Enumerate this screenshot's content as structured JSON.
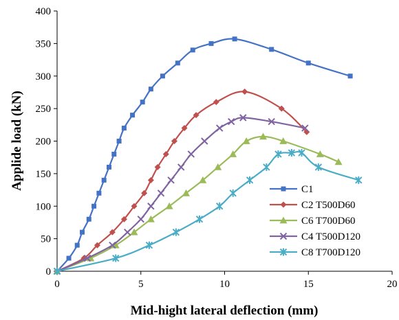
{
  "chart_data": {
    "type": "line",
    "xlabel": "Mid-hight lateral deflection (mm)",
    "ylabel": "Applide load (kN)",
    "xlim": [
      0,
      20
    ],
    "ylim": [
      0,
      400
    ],
    "x_ticks": [
      "0",
      "5",
      "10",
      "15",
      "20"
    ],
    "y_ticks": [
      "0",
      "50",
      "100",
      "150",
      "200",
      "250",
      "300",
      "350",
      "400"
    ],
    "grid": false,
    "legend_position": "bottom-right",
    "series": [
      {
        "name": "C1",
        "color": "#4472C4",
        "marker": "square",
        "points": [
          [
            0,
            0
          ],
          [
            0.7,
            20
          ],
          [
            1.2,
            40
          ],
          [
            1.5,
            60
          ],
          [
            1.9,
            80
          ],
          [
            2.2,
            100
          ],
          [
            2.5,
            120
          ],
          [
            2.8,
            140
          ],
          [
            3.1,
            160
          ],
          [
            3.4,
            180
          ],
          [
            3.7,
            200
          ],
          [
            4.0,
            220
          ],
          [
            4.5,
            240
          ],
          [
            5.1,
            260
          ],
          [
            5.6,
            280
          ],
          [
            6.3,
            300
          ],
          [
            7.2,
            320
          ],
          [
            8.1,
            340
          ],
          [
            9.2,
            350
          ],
          [
            10.6,
            357
          ],
          [
            12.8,
            341
          ],
          [
            15.0,
            320
          ],
          [
            17.5,
            300
          ]
        ]
      },
      {
        "name": "C2 T500D60",
        "color": "#C0504D",
        "marker": "diamond",
        "points": [
          [
            0,
            0
          ],
          [
            1.6,
            20
          ],
          [
            2.4,
            40
          ],
          [
            3.3,
            60
          ],
          [
            4.0,
            80
          ],
          [
            4.6,
            100
          ],
          [
            5.2,
            120
          ],
          [
            5.6,
            140
          ],
          [
            6.0,
            160
          ],
          [
            6.5,
            180
          ],
          [
            7.0,
            200
          ],
          [
            7.6,
            220
          ],
          [
            8.3,
            240
          ],
          [
            9.5,
            260
          ],
          [
            11.2,
            276
          ],
          [
            13.4,
            250
          ],
          [
            14.9,
            214
          ]
        ]
      },
      {
        "name": "C6 T700D60",
        "color": "#9BBB59",
        "marker": "triangle",
        "points": [
          [
            0,
            0
          ],
          [
            2.0,
            20
          ],
          [
            3.5,
            40
          ],
          [
            4.6,
            60
          ],
          [
            5.6,
            80
          ],
          [
            6.7,
            100
          ],
          [
            7.7,
            120
          ],
          [
            8.7,
            140
          ],
          [
            9.6,
            160
          ],
          [
            10.5,
            180
          ],
          [
            11.3,
            200
          ],
          [
            12.3,
            207
          ],
          [
            13.5,
            200
          ],
          [
            15.7,
            180
          ],
          [
            16.8,
            168
          ]
        ]
      },
      {
        "name": "C4 T500D120",
        "color": "#8064A2",
        "marker": "x",
        "points": [
          [
            0,
            0
          ],
          [
            1.8,
            20
          ],
          [
            3.3,
            40
          ],
          [
            4.2,
            60
          ],
          [
            5.0,
            80
          ],
          [
            5.6,
            100
          ],
          [
            6.2,
            120
          ],
          [
            6.8,
            140
          ],
          [
            7.4,
            160
          ],
          [
            8.0,
            180
          ],
          [
            8.8,
            200
          ],
          [
            9.7,
            220
          ],
          [
            10.4,
            230
          ],
          [
            11.1,
            236
          ],
          [
            12.8,
            230
          ],
          [
            14.8,
            220
          ]
        ]
      },
      {
        "name": "C8 T700D120",
        "color": "#4BACC6",
        "marker": "asterisk",
        "points": [
          [
            0,
            0
          ],
          [
            3.5,
            20
          ],
          [
            5.5,
            40
          ],
          [
            7.1,
            60
          ],
          [
            8.5,
            80
          ],
          [
            9.7,
            100
          ],
          [
            10.5,
            120
          ],
          [
            11.5,
            140
          ],
          [
            12.5,
            160
          ],
          [
            13.2,
            180
          ],
          [
            14.0,
            182
          ],
          [
            14.6,
            182
          ],
          [
            15.6,
            160
          ],
          [
            18.0,
            140
          ]
        ]
      }
    ]
  }
}
